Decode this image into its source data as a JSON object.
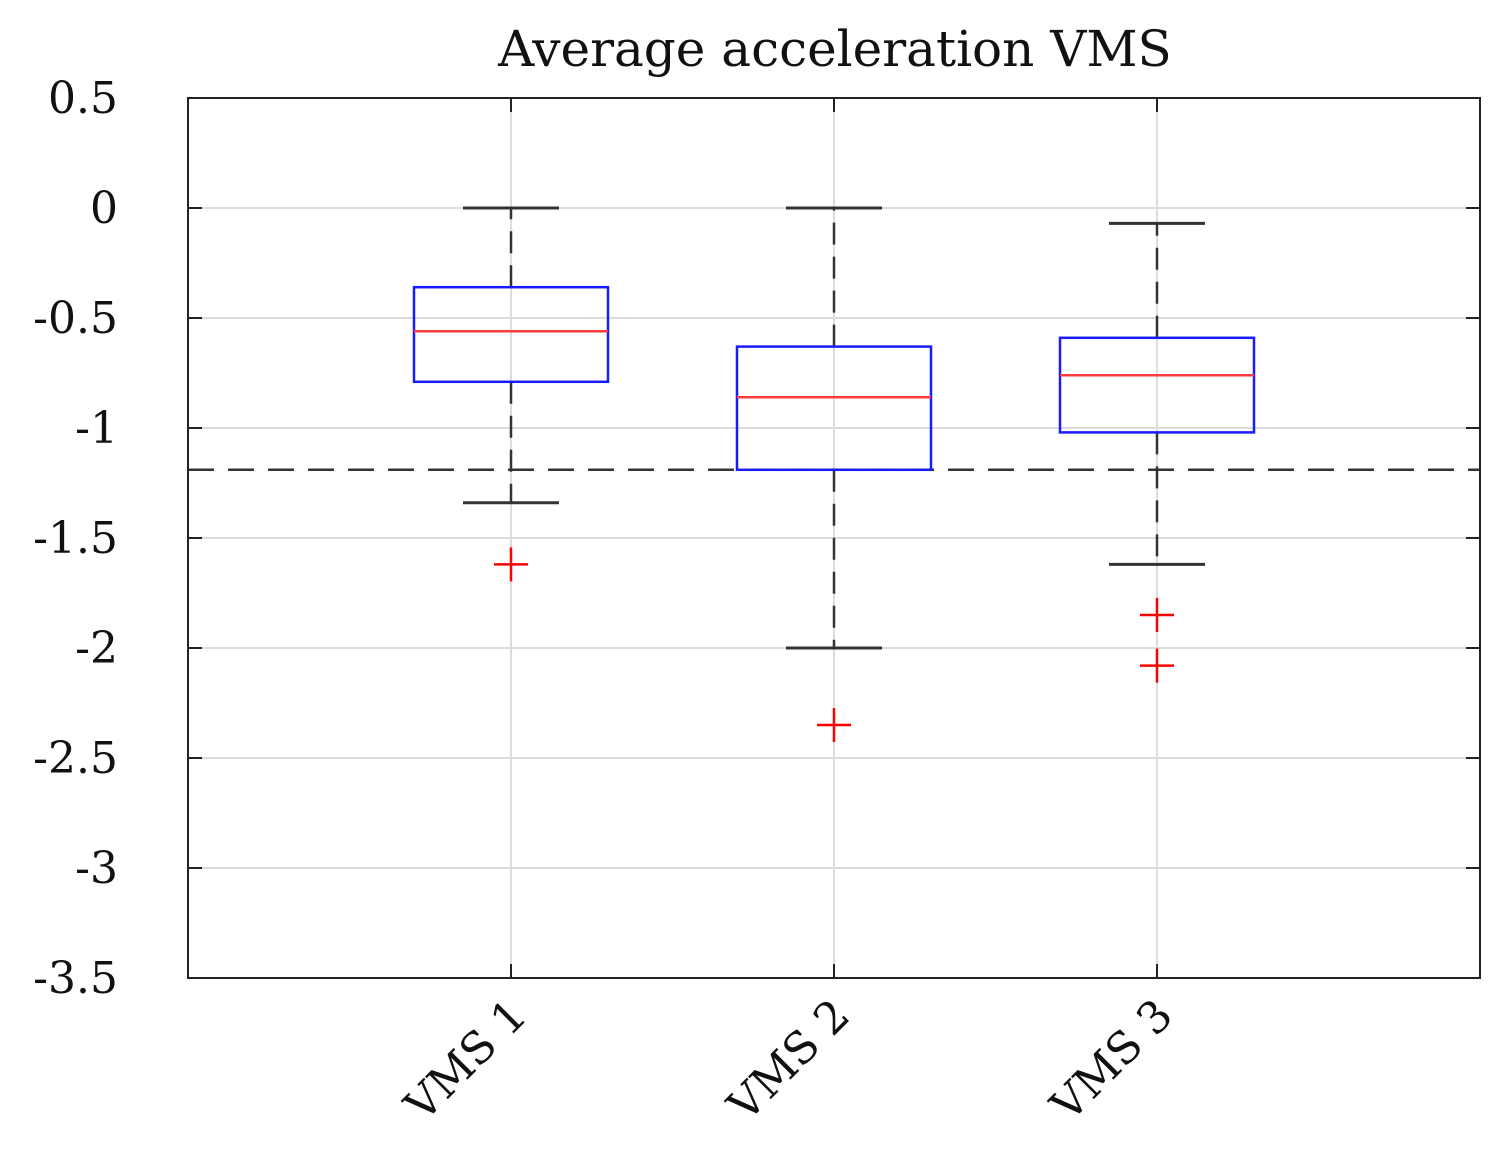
{
  "chart_data": {
    "type": "box",
    "title": "Average acceleration VMS",
    "xlabel": "",
    "ylabel": "",
    "ylim": [
      -3.5,
      0.5
    ],
    "yticks": [
      0.5,
      0,
      -0.5,
      -1,
      -1.5,
      -2,
      -2.5,
      -3,
      -3.5
    ],
    "ytick_labels": [
      "0.5",
      "0",
      "-0.5",
      "-1",
      "-1.5",
      "-2",
      "-2.5",
      "-3",
      "-3.5"
    ],
    "grid": true,
    "categories": [
      "VMS 1",
      "VMS 2",
      "VMS 3"
    ],
    "boxes": [
      {
        "name": "VMS 1",
        "whisker_low": -1.34,
        "q1": -0.79,
        "median": -0.56,
        "q3": -0.36,
        "whisker_high": 0.0,
        "outliers": [
          -1.62
        ]
      },
      {
        "name": "VMS 2",
        "whisker_low": -2.0,
        "q1": -1.19,
        "median": -0.86,
        "q3": -0.63,
        "whisker_high": 0.0,
        "outliers": [
          -2.35
        ]
      },
      {
        "name": "VMS 3",
        "whisker_low": -1.62,
        "q1": -1.02,
        "median": -0.76,
        "q3": -0.59,
        "whisker_high": -0.07,
        "outliers": [
          -1.85,
          -2.08
        ]
      }
    ],
    "reference_line": {
      "y": -1.19,
      "style": "dashed"
    },
    "colors": {
      "box": "#1a1aff",
      "median": "#ff3b3b",
      "whisker": "#333333",
      "outlier": "#ff0000",
      "grid": "#dcdcdc",
      "axis": "#222222"
    }
  }
}
